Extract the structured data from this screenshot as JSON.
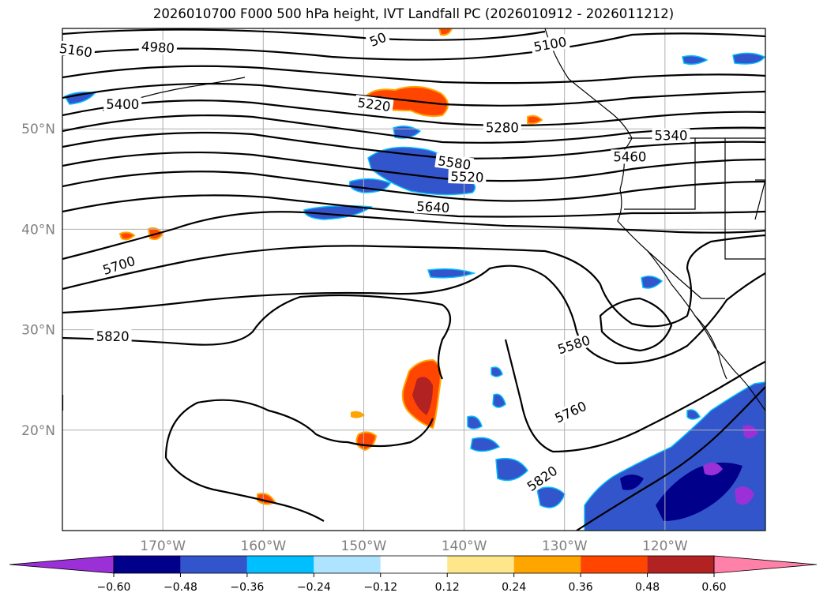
{
  "title": "2026010700 F000 500 hPa height, IVT Landfall PC (2026010912 - 2026011212)",
  "map": {
    "lon_range": [
      -180,
      -110
    ],
    "lat_range": [
      10,
      60
    ],
    "lon_labels": [
      {
        "lon": -170,
        "text": "170°W"
      },
      {
        "lon": -160,
        "text": "160°W"
      },
      {
        "lon": -150,
        "text": "150°W"
      },
      {
        "lon": -140,
        "text": "140°W"
      },
      {
        "lon": -130,
        "text": "130°W"
      },
      {
        "lon": -120,
        "text": "120°W"
      }
    ],
    "lat_labels": [
      {
        "lat": 50,
        "text": "50°N"
      },
      {
        "lat": 40,
        "text": "40°N"
      },
      {
        "lat": 30,
        "text": "30°N"
      },
      {
        "lat": 20,
        "text": "20°N"
      }
    ],
    "contour_labels": [
      {
        "text": "5160",
        "lon": -178.7,
        "lat": 57.6,
        "rot": 8
      },
      {
        "text": "4980",
        "lon": -170.5,
        "lat": 57.9,
        "rot": 4
      },
      {
        "text": "50",
        "lon": -148.5,
        "lat": 58.7,
        "rot": -22
      },
      {
        "text": "5100",
        "lon": -131.4,
        "lat": 58.2,
        "rot": -10
      },
      {
        "text": "5400",
        "lon": -174.0,
        "lat": 52.2,
        "rot": 0
      },
      {
        "text": "5220",
        "lon": -149.0,
        "lat": 52.2,
        "rot": 8
      },
      {
        "text": "5280",
        "lon": -136.2,
        "lat": 49.9,
        "rot": 0
      },
      {
        "text": "5340",
        "lon": -119.4,
        "lat": 49.1,
        "rot": 0
      },
      {
        "text": "5460",
        "lon": -123.5,
        "lat": 47.0,
        "rot": 0
      },
      {
        "text": "5580",
        "lon": -141.0,
        "lat": 46.4,
        "rot": 8
      },
      {
        "text": "5520",
        "lon": -139.7,
        "lat": 45.0,
        "rot": 2
      },
      {
        "text": "5640",
        "lon": -143.1,
        "lat": 42.0,
        "rot": 3
      },
      {
        "text": "5700",
        "lon": -174.3,
        "lat": 36.2,
        "rot": -18
      },
      {
        "text": "5580",
        "lon": -129.0,
        "lat": 28.3,
        "rot": -18
      },
      {
        "text": "5820",
        "lon": -175.0,
        "lat": 29.1,
        "rot": 0
      },
      {
        "text": "5760",
        "lon": -129.3,
        "lat": 21.6,
        "rot": -25
      },
      {
        "text": "5820",
        "lon": -132.1,
        "lat": 15.0,
        "rot": -35
      }
    ]
  },
  "colorbar": {
    "colors": [
      "#9b30d9",
      "#00008b",
      "#3355cc",
      "#00bfff",
      "#aee4ff",
      "#ffffff",
      "#ffe68a",
      "#ffa500",
      "#ff4500",
      "#b22222",
      "#ff80a8"
    ],
    "ticks": [
      "−0.60",
      "−0.48",
      "−0.36",
      "−0.24",
      "−0.12",
      "0.12",
      "0.24",
      "0.36",
      "0.48",
      "0.60"
    ]
  }
}
